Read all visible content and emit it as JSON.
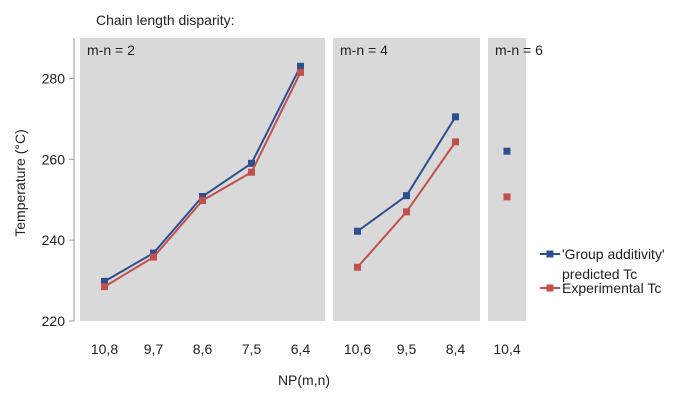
{
  "chart_data": {
    "type": "line",
    "title": "Chain length disparity:",
    "xlabel": "NP(m,n)",
    "ylabel": "Temperature (°C)",
    "ylim": [
      220,
      290
    ],
    "yticks": [
      220,
      240,
      260,
      280
    ],
    "grid": false,
    "legend_position": "right",
    "panels": [
      {
        "label": "m-n = 2",
        "categories": [
          "10,8",
          "9,7",
          "8,6",
          "7,5",
          "6,4"
        ]
      },
      {
        "label": "m-n = 4",
        "categories": [
          "10,6",
          "9,5",
          "8,4"
        ]
      },
      {
        "label": "m-n = 6",
        "categories": [
          "10,4"
        ]
      }
    ],
    "series": [
      {
        "name_lines": [
          "'Group additivity'",
          "predicted Tc"
        ],
        "color": "#2e4f8f",
        "values": [
          [
            229.8,
            236.8,
            250.8,
            259.0,
            283.0
          ],
          [
            242.2,
            251.0,
            270.5
          ],
          [
            262.0
          ]
        ]
      },
      {
        "name_lines": [
          "Experimental Tc"
        ],
        "color": "#c0504d",
        "values": [
          [
            228.5,
            235.8,
            249.8,
            256.8,
            281.5
          ],
          [
            233.3,
            247.0,
            264.3
          ],
          [
            250.7
          ]
        ]
      }
    ]
  }
}
